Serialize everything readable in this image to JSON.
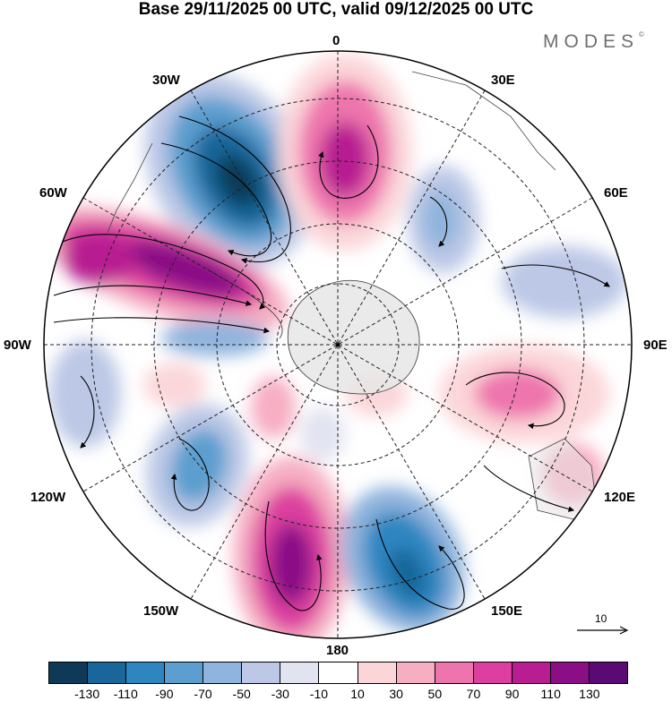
{
  "header": {
    "title": "Base 29/11/2025 00 UTC, valid 09/12/2025 00 UTC",
    "brand": "MODES",
    "brand_mark": "©"
  },
  "map": {
    "projection": "south-polar-stereographic",
    "longitude_labels": {
      "lon_0": "0",
      "lon_30e": "30E",
      "lon_60e": "60E",
      "lon_90e": "90E",
      "lon_120e": "120E",
      "lon_150e": "150E",
      "lon_180": "180",
      "lon_150w": "150W",
      "lon_120w": "120W",
      "lon_90w": "90W",
      "lon_60w": "60W",
      "lon_30w": "30W"
    },
    "field": "anomaly",
    "vector_scale_label": "10"
  },
  "legend": {
    "tick_labels": [
      "-130",
      "-110",
      "-90",
      "-70",
      "-50",
      "-30",
      "-10",
      "10",
      "30",
      "50",
      "70",
      "90",
      "110",
      "130"
    ],
    "colors": [
      "#0f3a57",
      "#18669a",
      "#2e86c1",
      "#5b9ecf",
      "#8fb4dd",
      "#bcc8e6",
      "#e2e3f1",
      "#ffffff",
      "#fbd6d9",
      "#f6aec3",
      "#ee74ad",
      "#dc3f9f",
      "#b81e91",
      "#8a0f86",
      "#5a0a72"
    ]
  }
}
